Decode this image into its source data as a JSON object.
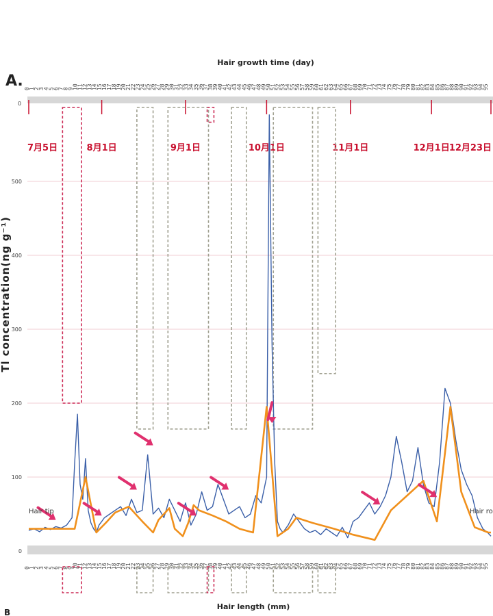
{
  "chart_data": {
    "type": "line",
    "panel_label": "A.",
    "top_axis_label": "Hair growth time (day)",
    "bottom_axis_label": "Hair length (mm)",
    "ylabel": "Tl concentration(ng g⁻¹)",
    "top_axis_start": "0",
    "ylim": [
      0,
      600
    ],
    "yticks": [
      "0",
      "100",
      "200",
      "300",
      "400",
      "500"
    ],
    "grid": true,
    "date_labels": [
      "7月5日",
      "8月1日",
      "9月1日",
      "10月1日",
      "11月1日",
      "12月1日",
      "12月23日"
    ],
    "date_positions_day": [
      0,
      27,
      58,
      88,
      119,
      149,
      171
    ],
    "xlim_day": [
      0,
      171
    ],
    "side_labels": {
      "left": "Hair tip",
      "right": "Hair root"
    },
    "corner_mark": "B",
    "series": [
      {
        "kind": "raw",
        "color": "#3a5fa8",
        "x": [
          0,
          2,
          4,
          6,
          8,
          10,
          12,
          14,
          16,
          17,
          18,
          19,
          20,
          21,
          22,
          23,
          24,
          25,
          26,
          27,
          28,
          30,
          32,
          34,
          36,
          38,
          40,
          42,
          44,
          46,
          48,
          50,
          52,
          54,
          56,
          58,
          60,
          62,
          64,
          66,
          68,
          70,
          72,
          74,
          76,
          78,
          80,
          82,
          84,
          86,
          88,
          89,
          90,
          91,
          92,
          93,
          94,
          96,
          98,
          100,
          102,
          104,
          106,
          108,
          110,
          112,
          114,
          116,
          118,
          120,
          122,
          124,
          126,
          128,
          130,
          132,
          134,
          136,
          138,
          140,
          142,
          144,
          146,
          148,
          150,
          152,
          154,
          156,
          158,
          160,
          162,
          164,
          166,
          168,
          170,
          171
        ],
        "y": [
          28,
          30,
          26,
          32,
          29,
          33,
          31,
          35,
          45,
          120,
          185,
          90,
          70,
          125,
          55,
          38,
          30,
          25,
          35,
          40,
          45,
          50,
          55,
          60,
          48,
          70,
          52,
          55,
          130,
          50,
          58,
          45,
          70,
          55,
          40,
          65,
          35,
          50,
          80,
          55,
          60,
          90,
          70,
          50,
          55,
          60,
          45,
          50,
          75,
          65,
          100,
          590,
          280,
          120,
          40,
          30,
          25,
          35,
          50,
          40,
          30,
          25,
          28,
          22,
          30,
          25,
          20,
          32,
          18,
          40,
          45,
          55,
          65,
          50,
          60,
          75,
          100,
          155,
          120,
          80,
          95,
          140,
          90,
          65,
          60,
          120,
          220,
          200,
          150,
          110,
          90,
          75,
          45,
          30,
          24,
          20
        ]
      },
      {
        "kind": "trend",
        "color": "#f0901c",
        "x": [
          0,
          11,
          14,
          17,
          21,
          25,
          29,
          32,
          37,
          42,
          46,
          48,
          52,
          54,
          57,
          59,
          61,
          63,
          68,
          73,
          78,
          83,
          88,
          92,
          96,
          99,
          105,
          113,
          120,
          128,
          134,
          140,
          146,
          151,
          156,
          160,
          165,
          170,
          171
        ],
        "y": [
          30,
          30,
          30,
          30,
          100,
          25,
          40,
          52,
          60,
          40,
          25,
          42,
          58,
          30,
          20,
          38,
          62,
          55,
          48,
          40,
          30,
          25,
          195,
          20,
          30,
          45,
          38,
          30,
          22,
          15,
          55,
          75,
          95,
          40,
          195,
          80,
          32,
          25,
          25
        ]
      }
    ],
    "highlight_boxes": [
      {
        "style": "red",
        "x0": 12.5,
        "x1": 19.5,
        "y0": 200,
        "y1": 600
      },
      {
        "style": "gray",
        "x0": 40,
        "x1": 46,
        "y0": 165,
        "y1": 600
      },
      {
        "style": "gray",
        "x0": 51.5,
        "x1": 66.5,
        "y0": 165,
        "y1": 600
      },
      {
        "style": "red",
        "x0": 66,
        "x1": 68.5,
        "y0": 580,
        "y1": 600
      },
      {
        "style": "gray",
        "x0": 75,
        "x1": 80.5,
        "y0": 165,
        "y1": 600
      },
      {
        "style": "gray",
        "x0": 90.5,
        "x1": 105,
        "y0": 165,
        "y1": 600
      },
      {
        "style": "gray",
        "x0": 107,
        "x1": 113.5,
        "y0": 240,
        "y1": 600
      }
    ],
    "arrows_day": [
      9,
      26,
      39,
      45,
      61,
      73,
      89,
      129,
      150
    ]
  },
  "colors": {
    "raw_line": "#3a5fa8",
    "trend_line": "#f0901c",
    "date_red": "#c8102e",
    "arrow": "#e0306e",
    "grid_pink": "#f3d6dc",
    "baseline_band": "#d7d7d7"
  }
}
